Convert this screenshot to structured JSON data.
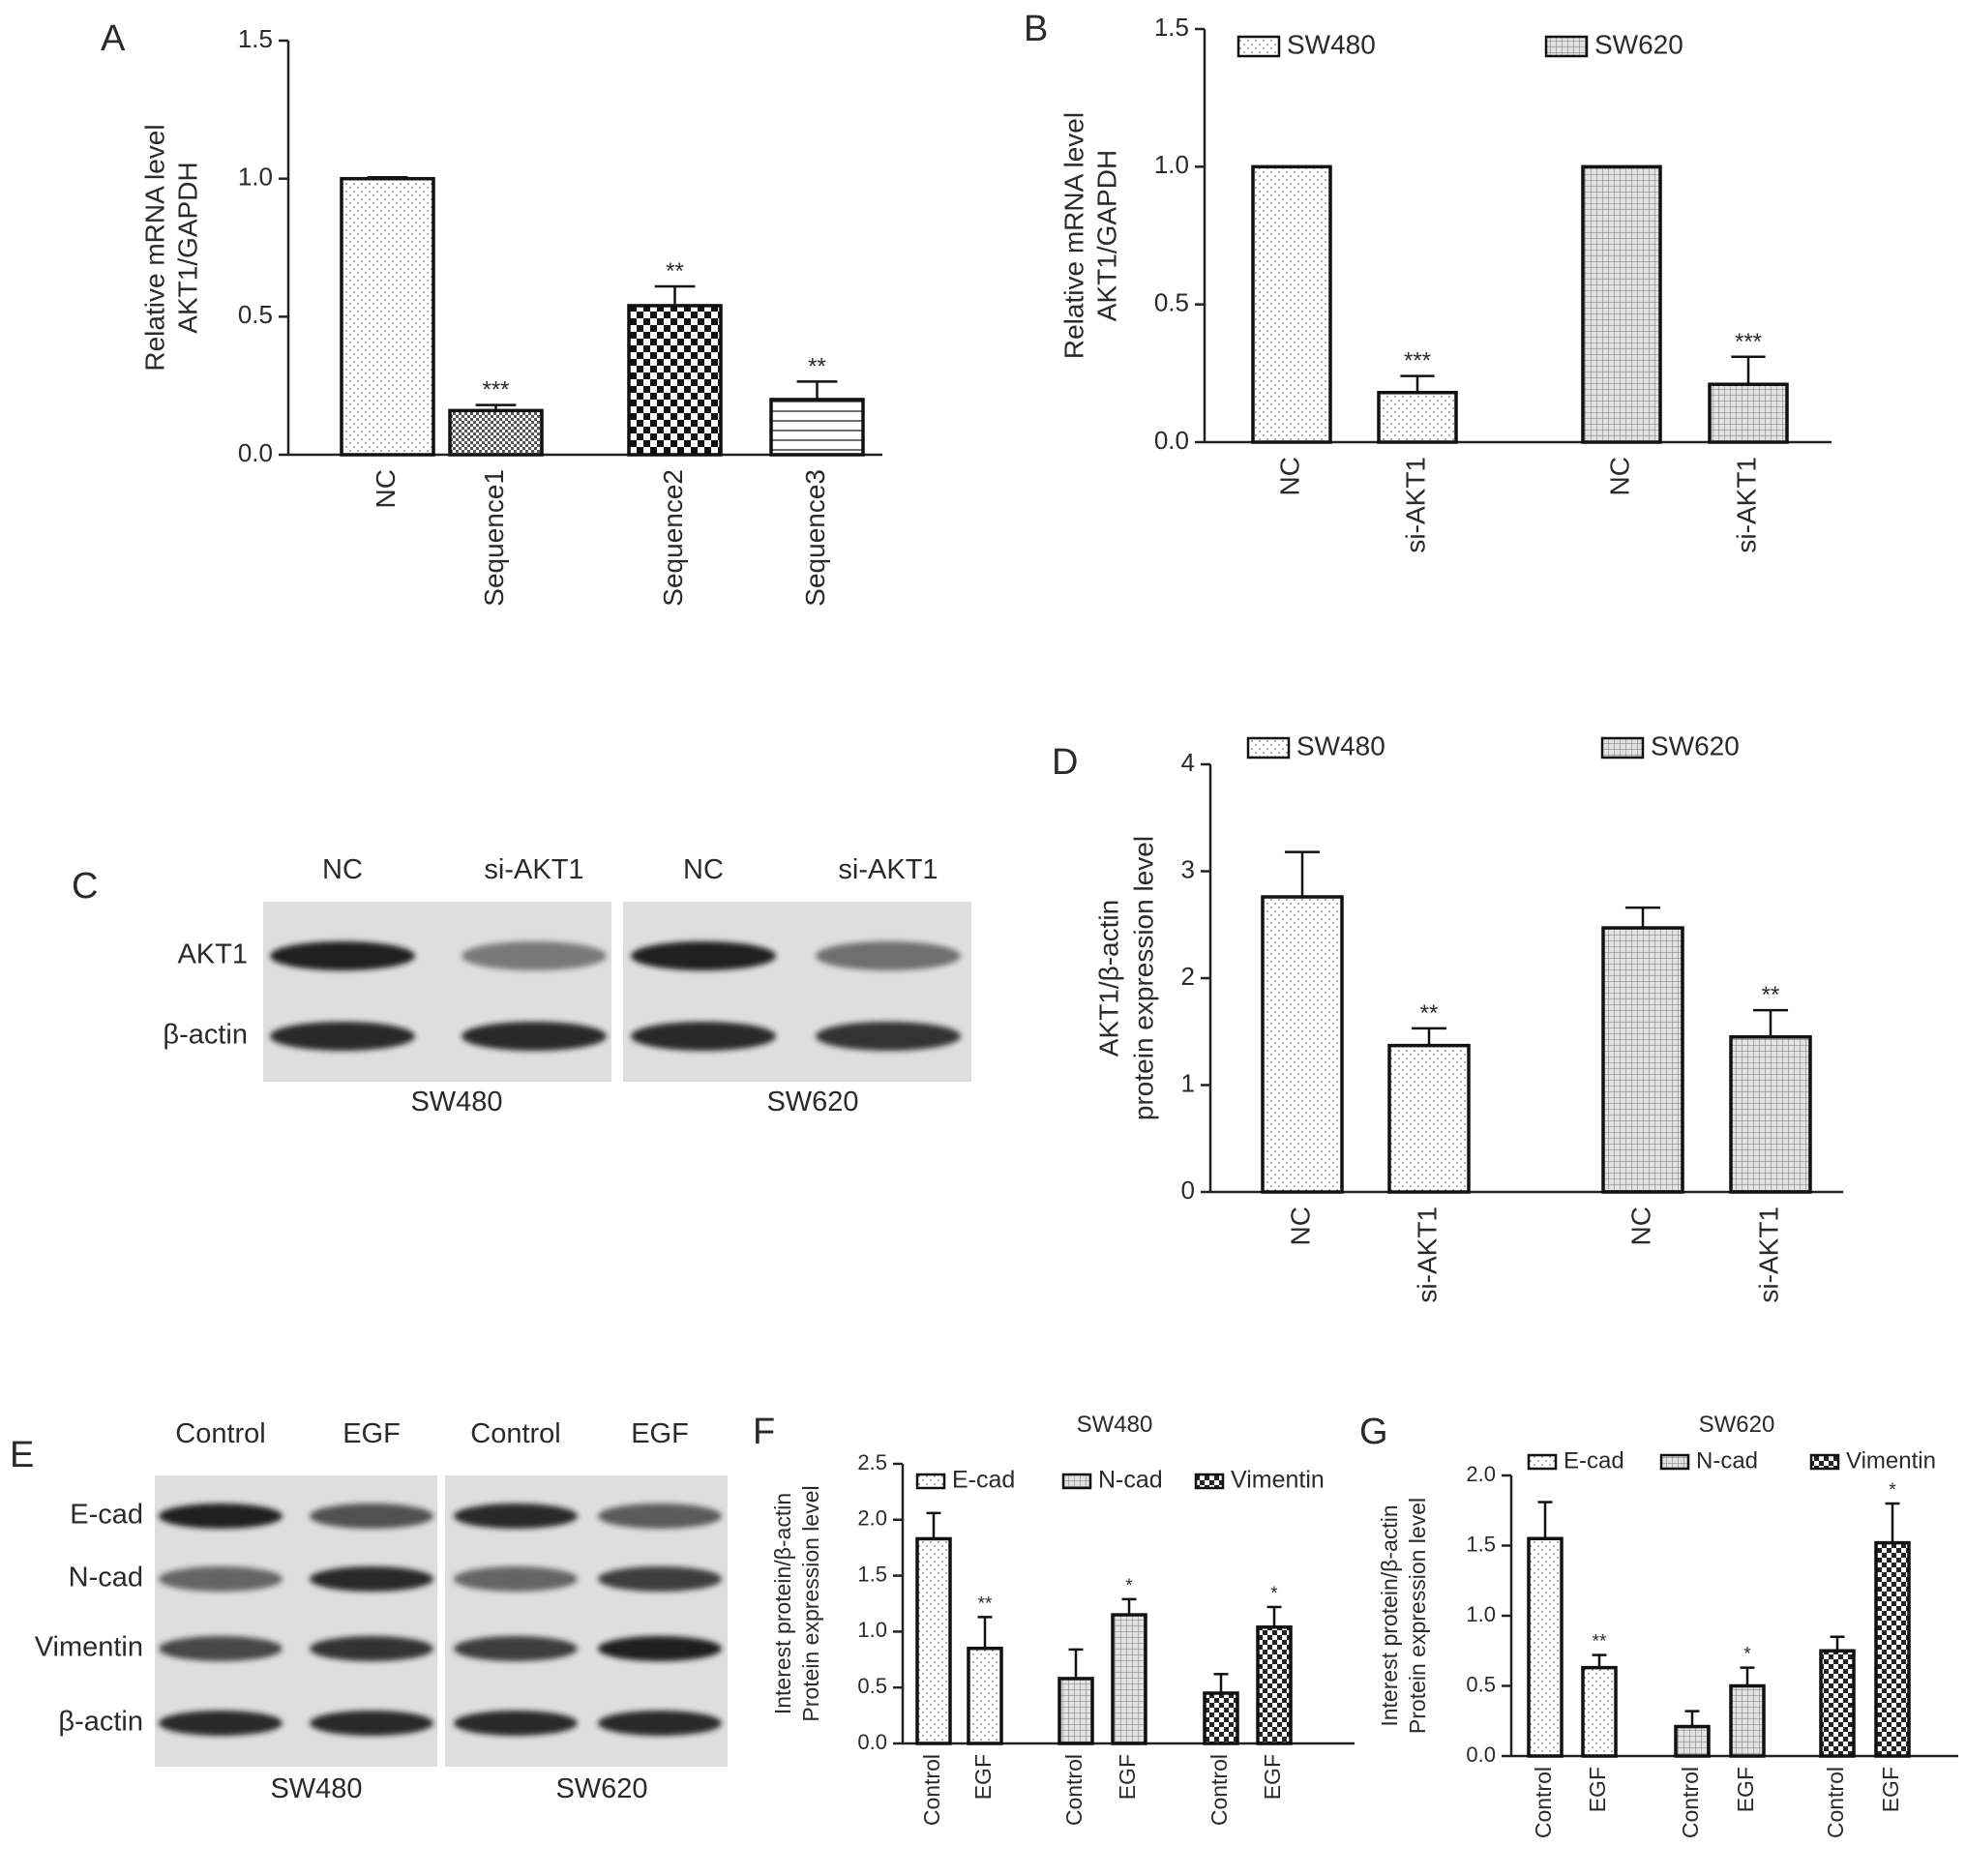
{
  "figure": {
    "panel_labels": [
      "A",
      "B",
      "C",
      "D",
      "E",
      "F",
      "G"
    ]
  },
  "chart_data": [
    {
      "panel": "A",
      "type": "bar",
      "ylabel_lines": [
        "Relative mRNA level",
        "AKT1/GAPDH"
      ],
      "ylim": [
        0,
        1.5
      ],
      "yticks": [
        "0.0",
        "0.5",
        "1.0",
        "1.5"
      ],
      "categories": [
        "NC",
        "Sequence1",
        "Sequence2",
        "Sequence3"
      ],
      "values": [
        1.0,
        0.16,
        0.54,
        0.2
      ],
      "errors": [
        0.005,
        0.02,
        0.07,
        0.065
      ],
      "significance": [
        "",
        "***",
        "**",
        "**"
      ],
      "patterns": [
        "dots",
        "check-fine",
        "check-coarse",
        "hlines"
      ]
    },
    {
      "panel": "B",
      "type": "bar",
      "ylabel_lines": [
        "Relative mRNA level",
        "AKT1/GAPDH"
      ],
      "ylim": [
        0,
        1.5
      ],
      "yticks": [
        "0.0",
        "0.5",
        "1.0",
        "1.5"
      ],
      "legend": [
        "SW480",
        "SW620"
      ],
      "categories": [
        "NC",
        "si-AKT1",
        "NC",
        "si-AKT1"
      ],
      "values": [
        1.0,
        0.18,
        1.0,
        0.21
      ],
      "errors": [
        0.0,
        0.06,
        0.0,
        0.1
      ],
      "significance": [
        "",
        "***",
        "",
        "***"
      ],
      "groups": [
        "SW480",
        "SW480",
        "SW620",
        "SW620"
      ]
    },
    {
      "panel": "D",
      "type": "bar",
      "ylabel_lines": [
        "AKT1/β-actin",
        "protein expression level"
      ],
      "ylim": [
        0,
        4
      ],
      "yticks": [
        "0",
        "1",
        "2",
        "3",
        "4"
      ],
      "legend": [
        "SW480",
        "SW620"
      ],
      "categories": [
        "NC",
        "si-AKT1",
        "NC",
        "si-AKT1"
      ],
      "values": [
        2.76,
        1.37,
        2.47,
        1.45
      ],
      "errors": [
        0.42,
        0.16,
        0.19,
        0.25
      ],
      "significance": [
        "",
        "**",
        "",
        "**"
      ],
      "groups": [
        "SW480",
        "SW480",
        "SW620",
        "SW620"
      ]
    },
    {
      "panel": "F",
      "type": "bar",
      "title": "SW480",
      "ylabel_lines": [
        "Interest protein/β-actin",
        "Protein expression level"
      ],
      "ylim": [
        0,
        2.5
      ],
      "yticks": [
        "0.0",
        "0.5",
        "1.0",
        "1.5",
        "2.0",
        "2.5"
      ],
      "legend": [
        "E-cad",
        "N-cad",
        "Vimentin"
      ],
      "categories": [
        "Control",
        "EGF",
        "Control",
        "EGF",
        "Control",
        "EGF"
      ],
      "values": [
        1.83,
        0.85,
        0.58,
        1.15,
        0.45,
        1.04
      ],
      "errors": [
        0.23,
        0.28,
        0.26,
        0.14,
        0.17,
        0.18
      ],
      "significance": [
        "",
        "**",
        "",
        "*",
        "",
        "*"
      ],
      "groups": [
        "E-cad",
        "E-cad",
        "N-cad",
        "N-cad",
        "Vimentin",
        "Vimentin"
      ]
    },
    {
      "panel": "G",
      "type": "bar",
      "title": "SW620",
      "ylabel_lines": [
        "Interest protein/β-actin",
        "Protein expression level"
      ],
      "ylim": [
        0,
        2.0
      ],
      "yticks": [
        "0.0",
        "0.5",
        "1.0",
        "1.5",
        "2.0"
      ],
      "legend": [
        "E-cad",
        "N-cad",
        "Vimentin"
      ],
      "categories": [
        "Control",
        "EGF",
        "Control",
        "EGF",
        "Control",
        "EGF"
      ],
      "values": [
        1.55,
        0.63,
        0.21,
        0.5,
        0.75,
        1.52
      ],
      "errors": [
        0.26,
        0.09,
        0.11,
        0.13,
        0.1,
        0.28
      ],
      "significance": [
        "",
        "**",
        "",
        "*",
        "",
        "*"
      ],
      "groups": [
        "E-cad",
        "E-cad",
        "N-cad",
        "N-cad",
        "Vimentin",
        "Vimentin"
      ]
    }
  ],
  "blots": {
    "C": {
      "lanes": [
        "NC",
        "si-AKT1",
        "NC",
        "si-AKT1"
      ],
      "rows": [
        "AKT1",
        "β-actin"
      ],
      "cell_lines": [
        "SW480",
        "SW620"
      ],
      "band_intensity": [
        [
          0.95,
          0.5,
          0.95,
          0.55
        ],
        [
          0.9,
          0.9,
          0.9,
          0.85
        ]
      ]
    },
    "E": {
      "lanes": [
        "Control",
        "EGF",
        "Control",
        "EGF"
      ],
      "rows": [
        "E-cad",
        "N-cad",
        "Vimentin",
        "β-actin"
      ],
      "cell_lines": [
        "SW480",
        "SW620"
      ],
      "band_intensity": [
        [
          0.95,
          0.7,
          0.9,
          0.65
        ],
        [
          0.6,
          0.9,
          0.6,
          0.8
        ],
        [
          0.75,
          0.85,
          0.8,
          0.95
        ],
        [
          0.9,
          0.9,
          0.9,
          0.9
        ]
      ]
    }
  },
  "colors": {
    "text": "#2a2a2a",
    "bar_stroke": "#111111",
    "blot_bg": "#dcdcdc",
    "band": "#1a1a1a"
  }
}
